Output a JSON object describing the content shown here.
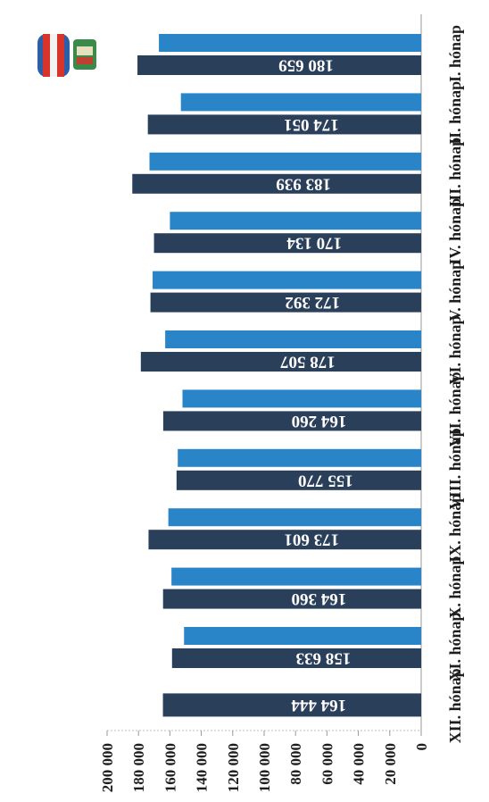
{
  "chart_data": {
    "type": "bar",
    "orientation": "rotated-90",
    "categories": [
      "I. hónap",
      "II. hónap",
      "III. hónap",
      "IV. hónap",
      "V. hónap",
      "VI. hónap",
      "VII. hónap",
      "VIII. hónap",
      "IX. hónap",
      "X. hónap",
      "XI. hónap",
      "XII. hónap"
    ],
    "series": [
      {
        "color": "#2a3f5a",
        "values": [
          180659,
          174051,
          183939,
          170134,
          172392,
          178507,
          164260,
          155770,
          173601,
          164360,
          158633,
          164444
        ],
        "labels": [
          "180 659",
          "174 051",
          "183 939",
          "170 134",
          "172 392",
          "178 507",
          "164 260",
          "155 770",
          "173 601",
          "164 360",
          "158 633",
          "164 444"
        ]
      },
      {
        "color": "#2a85c8",
        "values": [
          167000,
          153000,
          173000,
          160000,
          171000,
          163000,
          152000,
          155000,
          161000,
          159000,
          151000,
          0
        ],
        "labels": [
          "",
          "",
          "",
          "",
          "",
          "",
          "",
          "",
          "",
          "",
          "",
          ""
        ]
      }
    ],
    "ylim": [
      0,
      200000
    ],
    "yticks": [
      "0",
      "20 000",
      "40 000",
      "60 000",
      "80 000",
      "100 000",
      "120 000",
      "140 000",
      "160 000",
      "180 000",
      "200 000"
    ],
    "grid": false,
    "legend": "none"
  }
}
